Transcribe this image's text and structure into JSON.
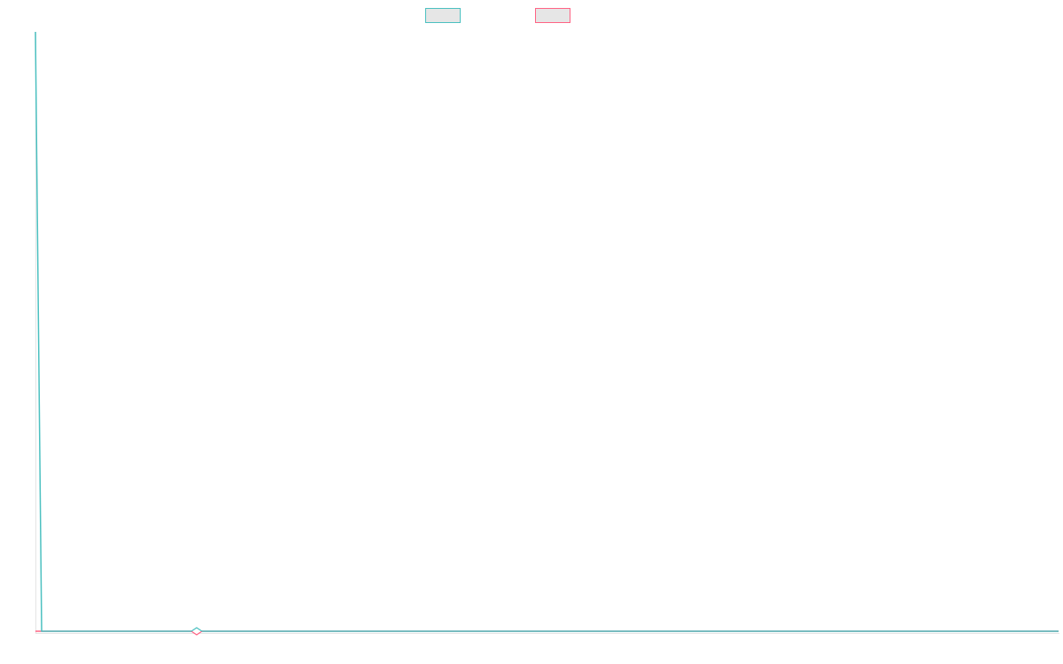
{
  "chart_data": {
    "type": "line",
    "title": "",
    "xlabel": "",
    "ylabel": "",
    "ylim": [
      0,
      100
    ],
    "grid": false,
    "legend_placement": "top",
    "highlighted_point_index": 26,
    "series": [
      {
        "name": "",
        "color": "#4bc0c0",
        "values": [
          100,
          0,
          0,
          0,
          0,
          0,
          0,
          0,
          0,
          0,
          0,
          0,
          0,
          0,
          0,
          0,
          0,
          0,
          0,
          0,
          0,
          0,
          0,
          0,
          0,
          0,
          0,
          0,
          0,
          0,
          0,
          0,
          0,
          0,
          0,
          0,
          0,
          0,
          0,
          0,
          0,
          0,
          0,
          0,
          0,
          0,
          0,
          0,
          0,
          0,
          0,
          0,
          0,
          0,
          0,
          0,
          0,
          0,
          0,
          0,
          0,
          0,
          0,
          0,
          0,
          0,
          0,
          0,
          0,
          0,
          0,
          0,
          0,
          0,
          0,
          0,
          0,
          0,
          0,
          0,
          0,
          0,
          0,
          0,
          0,
          0,
          0,
          0,
          0,
          0,
          0,
          0,
          0,
          0,
          0,
          0,
          0,
          0,
          0,
          0,
          0,
          0,
          0,
          0,
          0,
          0,
          0,
          0,
          0,
          0,
          0,
          0,
          0,
          0,
          0,
          0,
          0,
          0,
          0,
          0,
          0,
          0,
          0,
          0,
          0,
          0,
          0,
          0,
          0,
          0,
          0,
          0,
          0,
          0,
          0,
          0,
          0,
          0,
          0,
          0,
          0,
          0,
          0,
          0,
          0,
          0,
          0,
          0,
          0,
          0,
          0,
          0,
          0,
          0,
          0,
          0,
          0,
          0,
          0,
          0,
          0,
          0,
          0,
          0,
          0,
          0
        ]
      },
      {
        "name": "",
        "color": "#ff6384",
        "values": [
          0,
          0,
          0,
          0,
          0,
          0,
          0,
          0,
          0,
          0,
          0,
          0,
          0,
          0,
          0,
          0,
          0,
          0,
          0,
          0,
          0,
          0,
          0,
          0,
          0,
          0,
          0,
          0,
          0,
          0,
          0,
          0,
          0,
          0,
          0,
          0,
          0,
          0,
          0,
          0,
          0,
          0,
          0,
          0,
          0,
          0,
          0,
          0,
          0,
          0,
          0,
          0,
          0,
          0,
          0,
          0,
          0,
          0,
          0,
          0,
          0,
          0,
          0,
          0,
          0,
          0,
          0,
          0,
          0,
          0,
          0,
          0,
          0,
          0,
          0,
          0,
          0,
          0,
          0,
          0,
          0,
          0,
          0,
          0,
          0,
          0,
          0,
          0,
          0,
          0,
          0,
          0,
          0,
          0,
          0,
          0,
          0,
          0,
          0,
          0,
          0,
          0,
          0,
          0,
          0,
          0,
          0,
          0,
          0,
          0,
          0,
          0,
          0,
          0,
          0,
          0,
          0,
          0,
          0,
          0,
          0,
          0,
          0,
          0,
          0,
          0,
          0,
          0,
          0,
          0,
          0,
          0,
          0,
          0,
          0,
          0,
          0,
          0,
          0,
          0,
          0,
          0,
          0,
          0,
          0,
          0,
          0,
          0,
          0,
          0,
          0,
          0,
          0,
          0,
          0,
          0,
          0,
          0,
          0,
          0,
          0,
          0,
          0,
          0,
          0,
          0
        ]
      }
    ]
  }
}
